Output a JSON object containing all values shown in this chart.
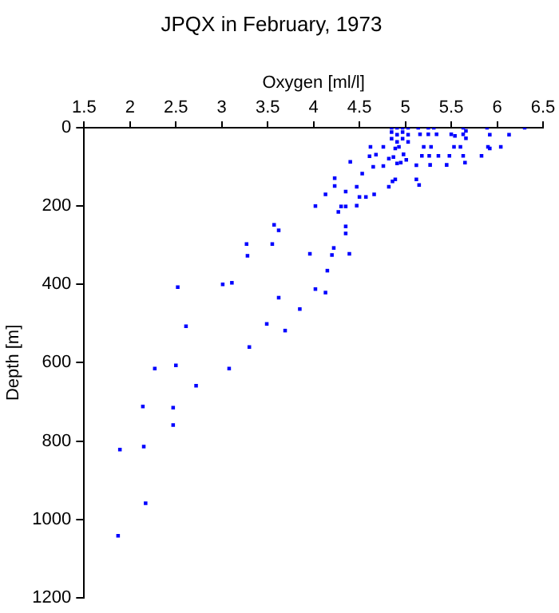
{
  "chart_data": {
    "type": "scatter",
    "title": "JPQX in February, 1973",
    "xlabel": "Oxygen [ml/l]",
    "ylabel": "Depth [m]",
    "xlim": [
      1.5,
      6.5
    ],
    "xticks": [
      1.5,
      2,
      2.5,
      3,
      3.5,
      4,
      4.5,
      5,
      5.5,
      6,
      6.5
    ],
    "ylim": [
      1200,
      0
    ],
    "yticks": [
      0,
      200,
      400,
      600,
      800,
      1000,
      1200
    ],
    "grid": false,
    "legend": false,
    "marker": "square",
    "series": [
      {
        "color": "#0000ff",
        "x": [
          4.15,
          2.52,
          3.01,
          3.11,
          3.62,
          4.02,
          4.13,
          3.85,
          2.61,
          3.49,
          3.69,
          3.3,
          2.5,
          2.27,
          3.08,
          2.72,
          2.14,
          2.47,
          2.47,
          1.89,
          2.15,
          2.17,
          1.87,
          3.27,
          3.28,
          3.55,
          3.57,
          3.62,
          3.96,
          4.2,
          4.22,
          4.39,
          4.35,
          4.35,
          4.02,
          4.13,
          4.23,
          4.23,
          4.3,
          4.35,
          4.27,
          4.47,
          4.47,
          4.35,
          4.5,
          4.57,
          4.66,
          4.53,
          4.4,
          4.65,
          4.61,
          4.62,
          4.76,
          4.68,
          4.76,
          4.82,
          4.86,
          4.89,
          4.82,
          4.87,
          4.91,
          4.95,
          5.01,
          4.98,
          4.93,
          4.89,
          4.85,
          4.91,
          4.97,
          5.03,
          4.85,
          4.91,
          4.97,
          5.03,
          4.85,
          4.91,
          4.97,
          5.03,
          5.12,
          5.12,
          5.15,
          5.18,
          5.14,
          5.25,
          5.31,
          5.16,
          5.25,
          5.34,
          5.2,
          5.28,
          5.26,
          5.27,
          5.36,
          5.45,
          5.48,
          5.53,
          5.5,
          5.63,
          5.63,
          5.6,
          5.63,
          5.65,
          5.54,
          5.66,
          5.89,
          5.92,
          5.9,
          5.83,
          5.92,
          6.04,
          6.13,
          6.3,
          5.66
        ],
        "values": [
          365,
          407,
          400,
          396,
          434,
          412,
          421,
          463,
          507,
          501,
          518,
          560,
          607,
          615,
          615,
          659,
          712,
          715,
          759,
          822,
          814,
          959,
          1042,
          297,
          327,
          297,
          248,
          262,
          322,
          325,
          307,
          322,
          252,
          270,
          200,
          170,
          149,
          129,
          201,
          201,
          215,
          199,
          151,
          163,
          177,
          177,
          170,
          117,
          87,
          100,
          73,
          49,
          49,
          69,
          98,
          151,
          137,
          132,
          79,
          75,
          91,
          89,
          82,
          68,
          49,
          53,
          0,
          0,
          0,
          0,
          11,
          18,
          11,
          18,
          28,
          36,
          28,
          36,
          96,
          132,
          146,
          72,
          0,
          0,
          0,
          17,
          17,
          17,
          49,
          49,
          72,
          95,
          72,
          95,
          72,
          49,
          17,
          0,
          17,
          49,
          72,
          89,
          21,
          8,
          0,
          18,
          49,
          72,
          53,
          49,
          18,
          0,
          27
        ]
      }
    ]
  }
}
